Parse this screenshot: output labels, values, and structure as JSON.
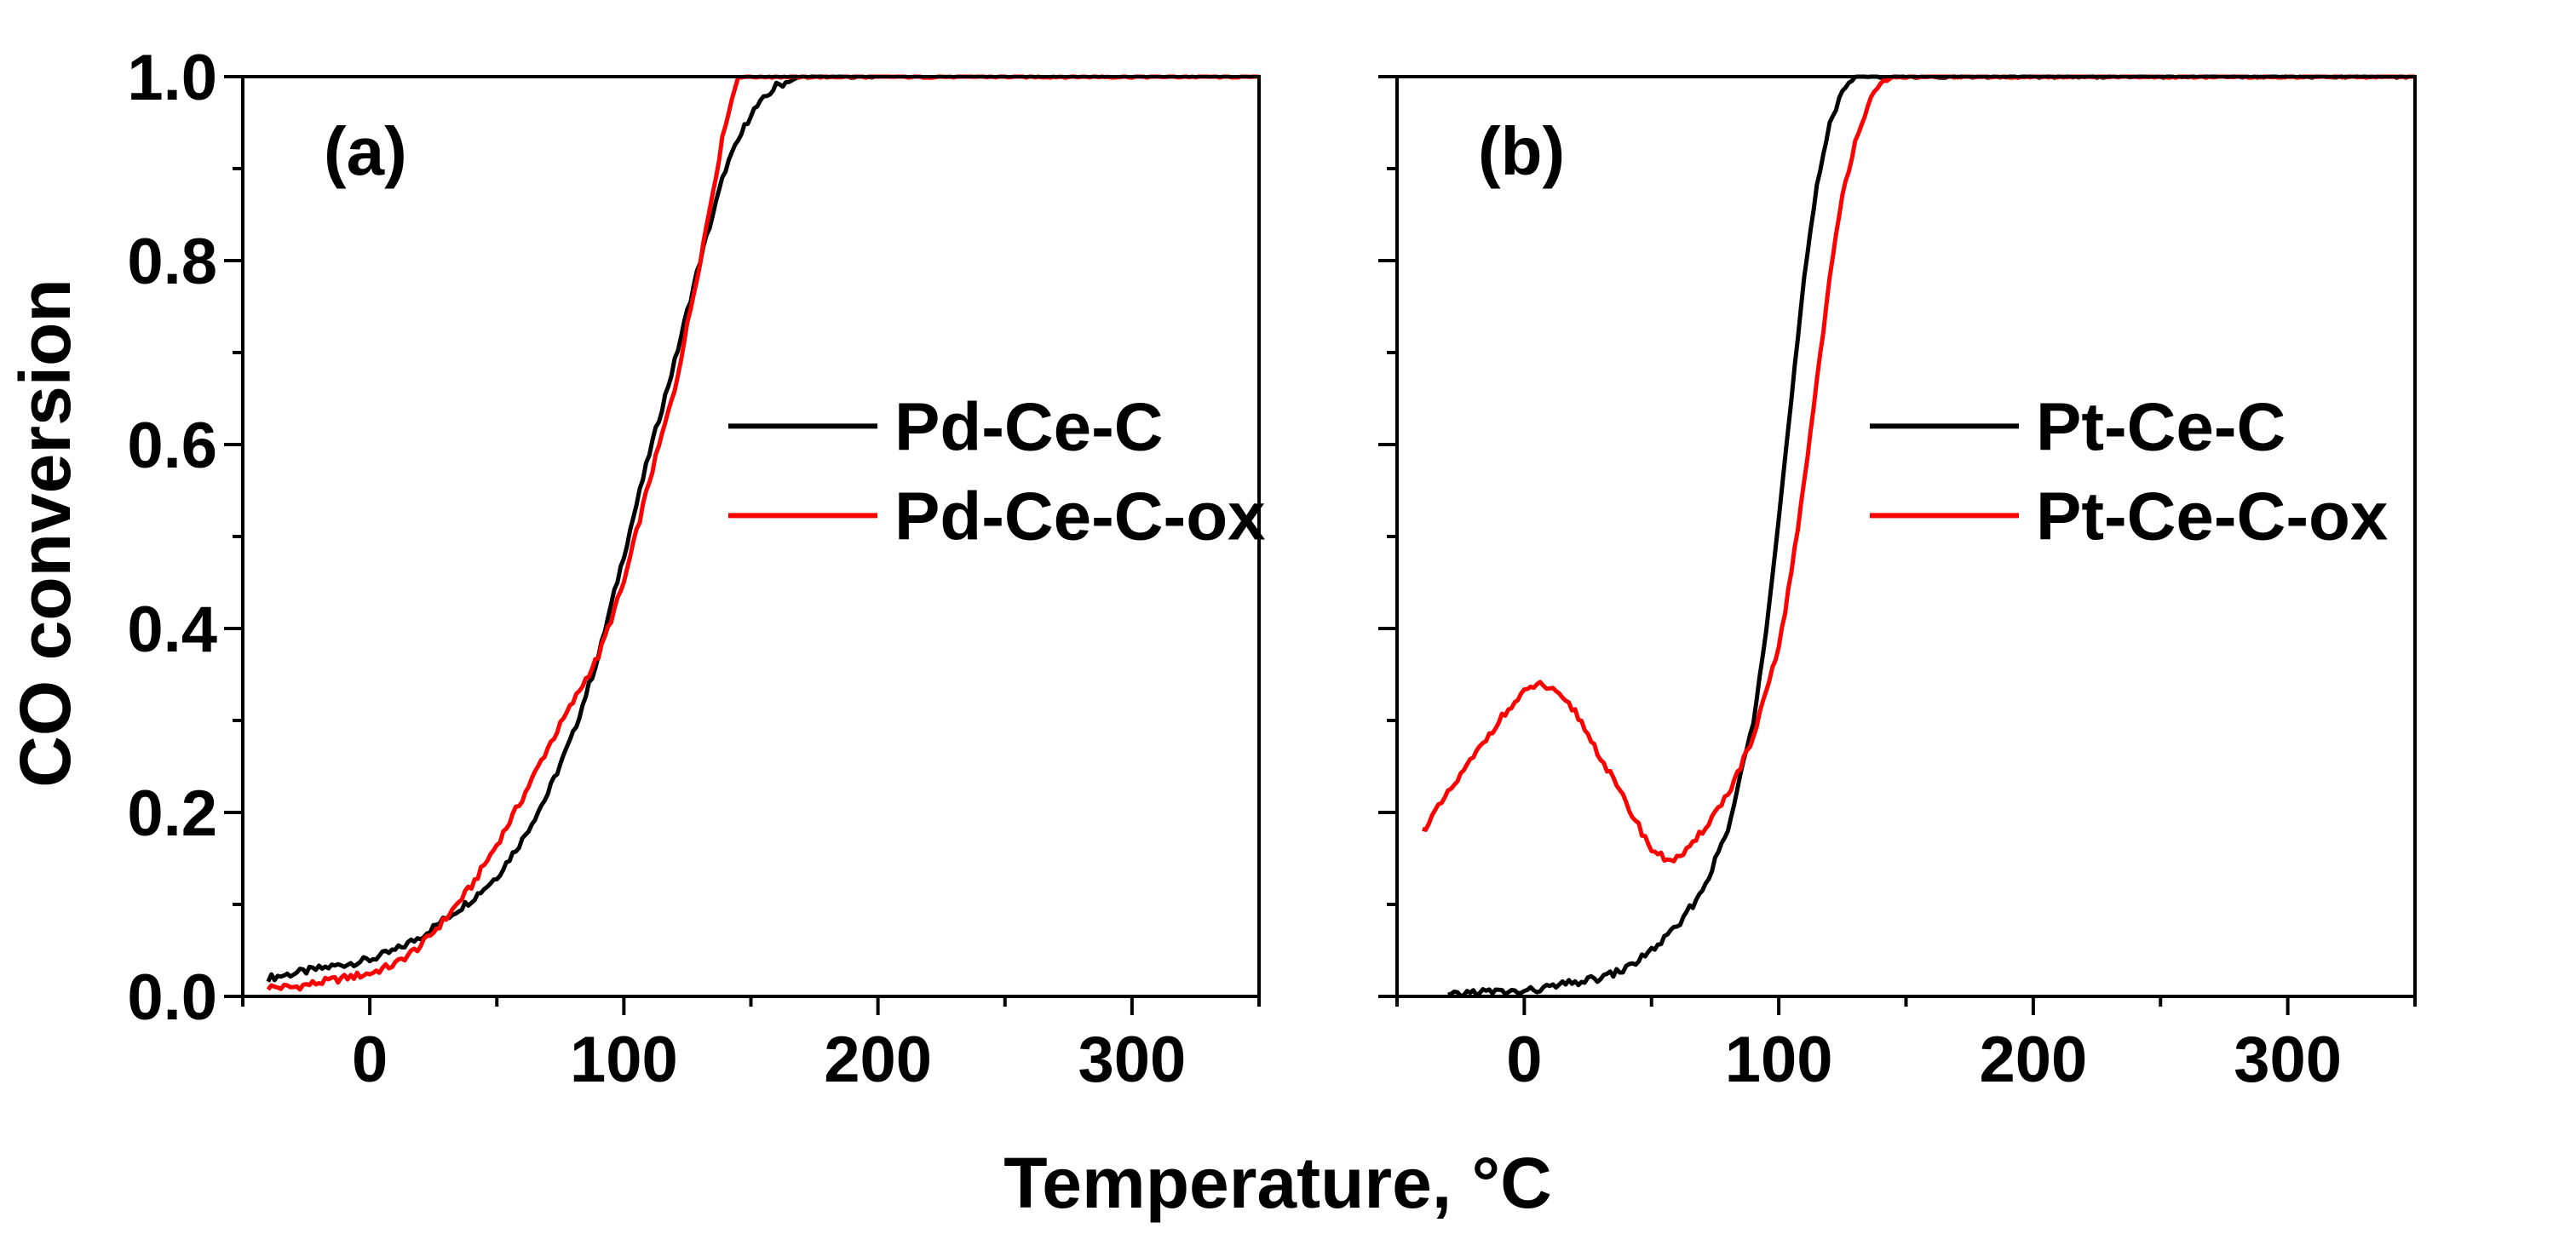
{
  "shared": {
    "xlabel": "Temperature, °C",
    "ylabel": "CO conversion",
    "colors": {
      "black": "#000000",
      "red": "#ff0000"
    }
  },
  "chart_data": [
    {
      "type": "line",
      "panel_label": "(a)",
      "xlim": [
        -50,
        350
      ],
      "ylim": [
        0,
        1.0
      ],
      "xticks": [
        0,
        100,
        200,
        300
      ],
      "xtick_labels": [
        "0",
        "100",
        "200",
        "300"
      ],
      "yticks": [
        0.0,
        0.2,
        0.4,
        0.6,
        0.8,
        1.0
      ],
      "ytick_labels": [
        "0.0",
        "0.2",
        "0.4",
        "0.6",
        "0.8",
        "1.0"
      ],
      "legend_position": "center-right",
      "series": [
        {
          "name": "Pd-Ce-C",
          "color": "#000000",
          "x": [
            -40,
            -30,
            -20,
            -10,
            0,
            10,
            20,
            30,
            40,
            50,
            60,
            70,
            80,
            90,
            100,
            110,
            120,
            130,
            140,
            150,
            160,
            170,
            180,
            200
          ],
          "y": [
            0.02,
            0.025,
            0.03,
            0.035,
            0.04,
            0.05,
            0.065,
            0.085,
            0.105,
            0.13,
            0.17,
            0.22,
            0.285,
            0.37,
            0.48,
            0.59,
            0.69,
            0.8,
            0.9,
            0.96,
            0.99,
            1.0,
            1.0,
            1.0
          ]
        },
        {
          "name": "Pd-Ce-C-ox",
          "color": "#ff0000",
          "x": [
            -40,
            -30,
            -20,
            -10,
            0,
            10,
            20,
            30,
            40,
            50,
            60,
            70,
            80,
            90,
            100,
            110,
            120,
            130,
            140,
            145,
            150,
            200,
            250,
            300,
            350
          ],
          "y": [
            0.01,
            0.01,
            0.015,
            0.02,
            0.025,
            0.035,
            0.055,
            0.085,
            0.12,
            0.165,
            0.215,
            0.27,
            0.32,
            0.37,
            0.45,
            0.56,
            0.66,
            0.8,
            0.95,
            1.0,
            1.0,
            1.0,
            1.0,
            1.0,
            1.0
          ]
        }
      ]
    },
    {
      "type": "line",
      "panel_label": "(b)",
      "xlim": [
        -50,
        350
      ],
      "ylim": [
        0,
        1.0
      ],
      "xticks": [
        0,
        100,
        200,
        300
      ],
      "xtick_labels": [
        "0",
        "100",
        "200",
        "300"
      ],
      "yticks": [
        0.0,
        0.2,
        0.4,
        0.6,
        0.8,
        1.0
      ],
      "ytick_labels": [
        "0.0",
        "0.2",
        "0.4",
        "0.6",
        "0.8",
        "1.0"
      ],
      "legend_position": "center-right",
      "series": [
        {
          "name": "Pt-Ce-C",
          "color": "#000000",
          "x": [
            -30,
            -20,
            -10,
            0,
            10,
            20,
            30,
            40,
            50,
            60,
            70,
            80,
            90,
            95,
            100,
            105,
            110,
            115,
            120,
            125,
            130,
            135,
            140,
            150,
            200,
            250,
            300,
            350
          ],
          "y": [
            0.0,
            0.005,
            0.005,
            0.005,
            0.01,
            0.015,
            0.02,
            0.03,
            0.05,
            0.075,
            0.115,
            0.18,
            0.3,
            0.4,
            0.52,
            0.65,
            0.78,
            0.88,
            0.95,
            0.985,
            1.0,
            1.0,
            1.0,
            1.0,
            1.0,
            1.0,
            1.0,
            1.0
          ]
        },
        {
          "name": "Pt-Ce-C-ox",
          "color": "#ff0000",
          "x": [
            -40,
            -30,
            -20,
            -10,
            0,
            5,
            10,
            20,
            30,
            40,
            50,
            55,
            60,
            65,
            70,
            80,
            90,
            100,
            105,
            110,
            115,
            120,
            125,
            130,
            135,
            140,
            145,
            150,
            200,
            250,
            300,
            350
          ],
          "y": [
            0.18,
            0.22,
            0.26,
            0.3,
            0.33,
            0.34,
            0.335,
            0.31,
            0.26,
            0.21,
            0.16,
            0.15,
            0.15,
            0.16,
            0.18,
            0.22,
            0.28,
            0.38,
            0.46,
            0.56,
            0.67,
            0.78,
            0.87,
            0.93,
            0.97,
            0.99,
            1.0,
            1.0,
            1.0,
            1.0,
            1.0,
            1.0
          ]
        }
      ]
    }
  ]
}
